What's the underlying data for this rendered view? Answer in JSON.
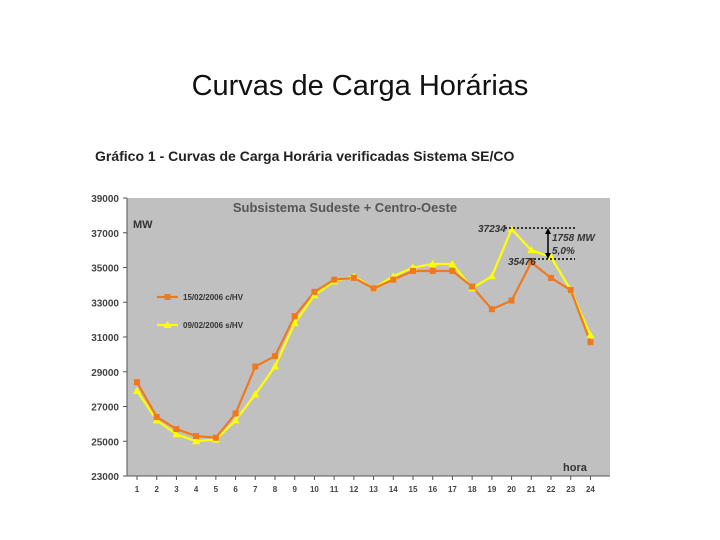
{
  "slide": {
    "title": "Curvas de Carga Horárias",
    "caption": "Gráfico 1 - Curvas de Carga Horária verificadas Sistema SE/CO"
  },
  "chart_data": {
    "type": "line",
    "title": "Subsistema Sudeste + Centro-Oeste",
    "ylabel": "MW",
    "xlabel": "hora",
    "x": [
      1,
      2,
      3,
      4,
      5,
      6,
      7,
      8,
      9,
      10,
      11,
      12,
      13,
      14,
      15,
      16,
      17,
      18,
      19,
      20,
      21,
      22,
      23,
      24
    ],
    "ylim": [
      23000,
      39000
    ],
    "yticks": [
      23000,
      25000,
      27000,
      29000,
      31000,
      33000,
      35000,
      37000,
      39000
    ],
    "grid": false,
    "legend_position": "left",
    "background": "#c0c0c0",
    "series": [
      {
        "name": "15/02/2006 c/HV",
        "color": "#f07820",
        "marker": "square",
        "values": [
          28400,
          26400,
          25700,
          25300,
          25200,
          26600,
          29300,
          29900,
          32200,
          33600,
          34300,
          34400,
          33800,
          34300,
          34800,
          34800,
          34800,
          33900,
          32600,
          33100,
          35300,
          34400,
          33700,
          30700
        ]
      },
      {
        "name": "09/02/2006 s/HV",
        "color": "#ffff00",
        "marker": "triangle",
        "values": [
          27900,
          26200,
          25400,
          25000,
          25100,
          26200,
          27700,
          29300,
          31800,
          33400,
          34200,
          34500,
          33800,
          34500,
          35000,
          35200,
          35200,
          33800,
          34500,
          37200,
          36000,
          35600,
          33700,
          31100
        ]
      }
    ],
    "annotations": {
      "top_value": "37234",
      "bottom_value": "35476",
      "difference": "1758 MW",
      "percent": "5,0%"
    }
  }
}
